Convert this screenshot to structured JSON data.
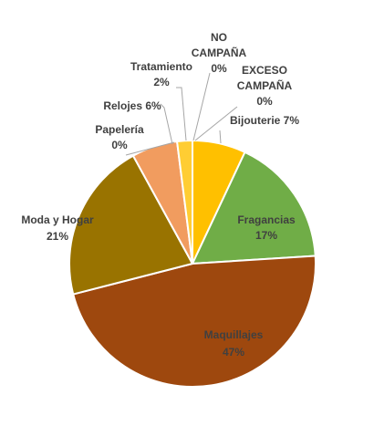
{
  "chart_data": {
    "type": "pie",
    "slices": [
      {
        "name": "Bijouterie",
        "value": 7,
        "pct_label": "7%",
        "color": "#ffc000"
      },
      {
        "name": "Fragancias",
        "value": 17,
        "pct_label": "17%",
        "color": "#70ad47"
      },
      {
        "name": "Maquillajes",
        "value": 47,
        "pct_label": "47%",
        "color": "#9e480e"
      },
      {
        "name": "Moda y Hogar",
        "value": 21,
        "pct_label": "21%",
        "color": "#997300"
      },
      {
        "name": "Papelería",
        "value": 0,
        "pct_label": "0%",
        "color": "#636363"
      },
      {
        "name": "Relojes",
        "value": 6,
        "pct_label": "6%",
        "color": "#f19c5f"
      },
      {
        "name": "Tratamiento",
        "value": 2,
        "pct_label": "2%",
        "color": "#ffcd33"
      },
      {
        "name": "NO CAMPAÑA",
        "value": 0,
        "pct_label": "0%",
        "color": "#5b9bd5"
      },
      {
        "name": "EXCESO CAMPAÑA",
        "value": 0,
        "pct_label": "0%",
        "color": "#a5a5a5"
      }
    ],
    "labels": {
      "bijouterie": "Bijouterie 7%",
      "fragancias_name": "Fragancias",
      "fragancias_pct": "17%",
      "maquillajes_name": "Maquillajes",
      "maquillajes_pct": "47%",
      "moda_name": "Moda y Hogar",
      "moda_pct": "21%",
      "papeleria_name": "Papelería",
      "papeleria_pct": "0%",
      "relojes": "Relojes 6%",
      "tratamiento_name": "Tratamiento",
      "tratamiento_pct": "2%",
      "no_campana_1": "NO",
      "no_campana_2": "CAMPAÑA",
      "no_campana_pct": "0%",
      "exceso_1": "EXCESO",
      "exceso_2": "CAMPAÑA",
      "exceso_pct": "0%"
    }
  }
}
